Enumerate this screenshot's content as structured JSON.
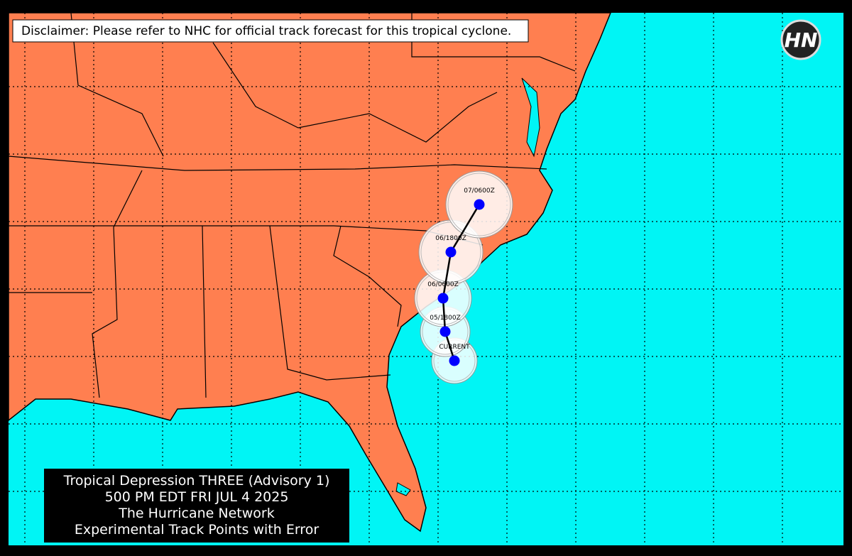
{
  "disclaimer": "Disclaimer: Please refer to NHC for official track forecast for this tropical cyclone.",
  "logo": "HN",
  "track_points": [
    {
      "label": "CURRENT"
    },
    {
      "label": "05/1800Z"
    },
    {
      "label": "06/0600Z"
    },
    {
      "label": "06/1800Z"
    },
    {
      "label": "07/0600Z"
    }
  ],
  "info_box": {
    "lines": [
      "Tropical Depression THREE (Advisory 1)",
      "500 PM EDT FRI JUL 4 2025",
      "The Hurricane Network",
      "Experimental Track Points with Error"
    ]
  }
}
